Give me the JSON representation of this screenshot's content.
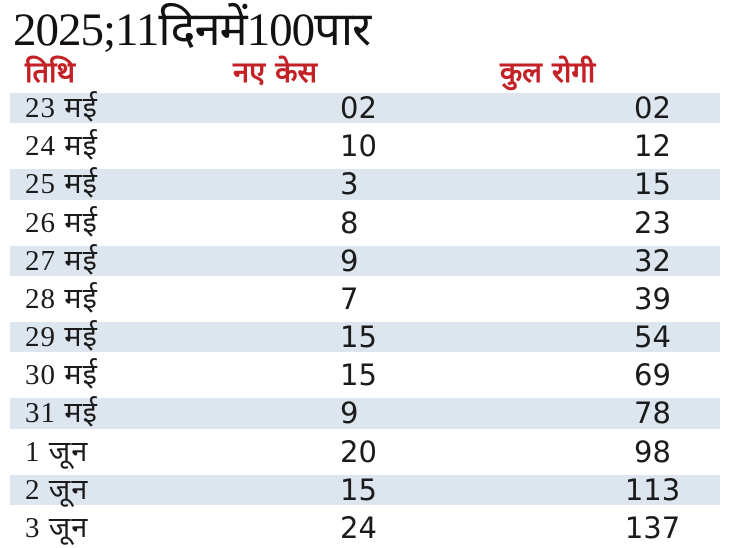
{
  "title": "2025;11दिनमें100पार",
  "table": {
    "columns": [
      "तिथि",
      "नए केस",
      "कुल रोगी"
    ],
    "rows": [
      {
        "date": "23 मई",
        "new_cases": "02",
        "total": "02"
      },
      {
        "date": "24 मई",
        "new_cases": "10",
        "total": "12"
      },
      {
        "date": "25 मई",
        "new_cases": "3",
        "total": "15"
      },
      {
        "date": "26 मई",
        "new_cases": "8",
        "total": "23"
      },
      {
        "date": "27 मई",
        "new_cases": "9",
        "total": "32"
      },
      {
        "date": "28 मई",
        "new_cases": "7",
        "total": "39"
      },
      {
        "date": "29 मई",
        "new_cases": "15",
        "total": "54"
      },
      {
        "date": "30 मई",
        "new_cases": "15",
        "total": "69"
      },
      {
        "date": "31 मई",
        "new_cases": "9",
        "total": "78"
      },
      {
        "date": "1 जून",
        "new_cases": "20",
        "total": "98"
      },
      {
        "date": "2 जून",
        "new_cases": "15",
        "total": "113"
      },
      {
        "date": "3 जून",
        "new_cases": "24",
        "total": "137"
      }
    ]
  },
  "colors": {
    "header_red": "#c42127",
    "row_stripe": "#dde5ee",
    "text_black": "#1b1b1b",
    "background": "#ffffff"
  },
  "chart_data": {
    "type": "table",
    "title": "2025;11दिनमें100पार",
    "columns": [
      "तिथि",
      "नए केस",
      "कुल रोगी"
    ],
    "categories": [
      "23 मई",
      "24 मई",
      "25 मई",
      "26 मई",
      "27 मई",
      "28 मई",
      "29 मई",
      "30 मई",
      "31 मई",
      "1 जून",
      "2 जून",
      "3 जून"
    ],
    "series": [
      {
        "name": "नए केस",
        "values": [
          2,
          10,
          3,
          8,
          9,
          7,
          15,
          15,
          9,
          20,
          15,
          24
        ]
      },
      {
        "name": "कुल रोगी",
        "values": [
          2,
          12,
          15,
          23,
          32,
          39,
          54,
          69,
          78,
          98,
          113,
          137
        ]
      }
    ],
    "layout_hints": {
      "striped_rows": "odd rows (1st, 3rd, ...) have light blue-gray background",
      "header_color": "#c42127",
      "grid": false
    }
  }
}
